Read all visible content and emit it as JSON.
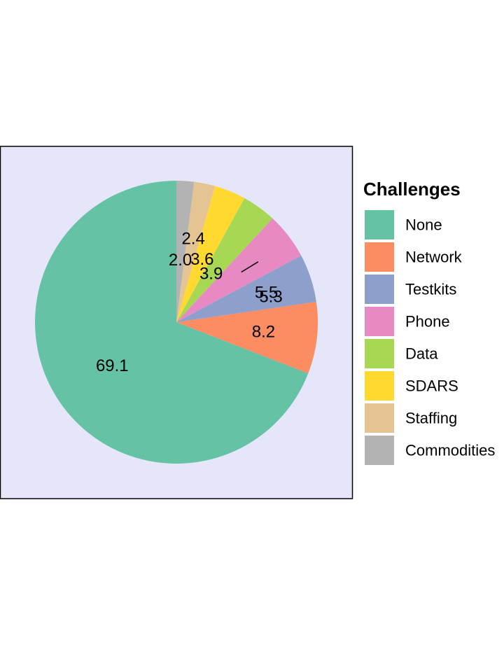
{
  "chart_data": {
    "type": "pie",
    "legend_title": "Challenges",
    "legend_position": "right",
    "start_angle": "top",
    "direction": "counterclockwise",
    "panel_background": "#E6E6FA",
    "slices": [
      {
        "label": "None",
        "value": 69.1,
        "color": "#66C2A5"
      },
      {
        "label": "Network",
        "value": 8.2,
        "color": "#FC8D62"
      },
      {
        "label": "Testkits",
        "value": 5.5,
        "color": "#8DA0CB"
      },
      {
        "label": "Phone",
        "value": 5.3,
        "color": "#E78AC3"
      },
      {
        "label": "Data",
        "value": 3.9,
        "color": "#A6D854"
      },
      {
        "label": "SDARS",
        "value": 3.6,
        "color": "#FFD92F"
      },
      {
        "label": "Staffing",
        "value": 2.4,
        "color": "#E5C494"
      },
      {
        "label": "Commodities",
        "value": 2.0,
        "color": "#B3B3B3"
      }
    ]
  }
}
